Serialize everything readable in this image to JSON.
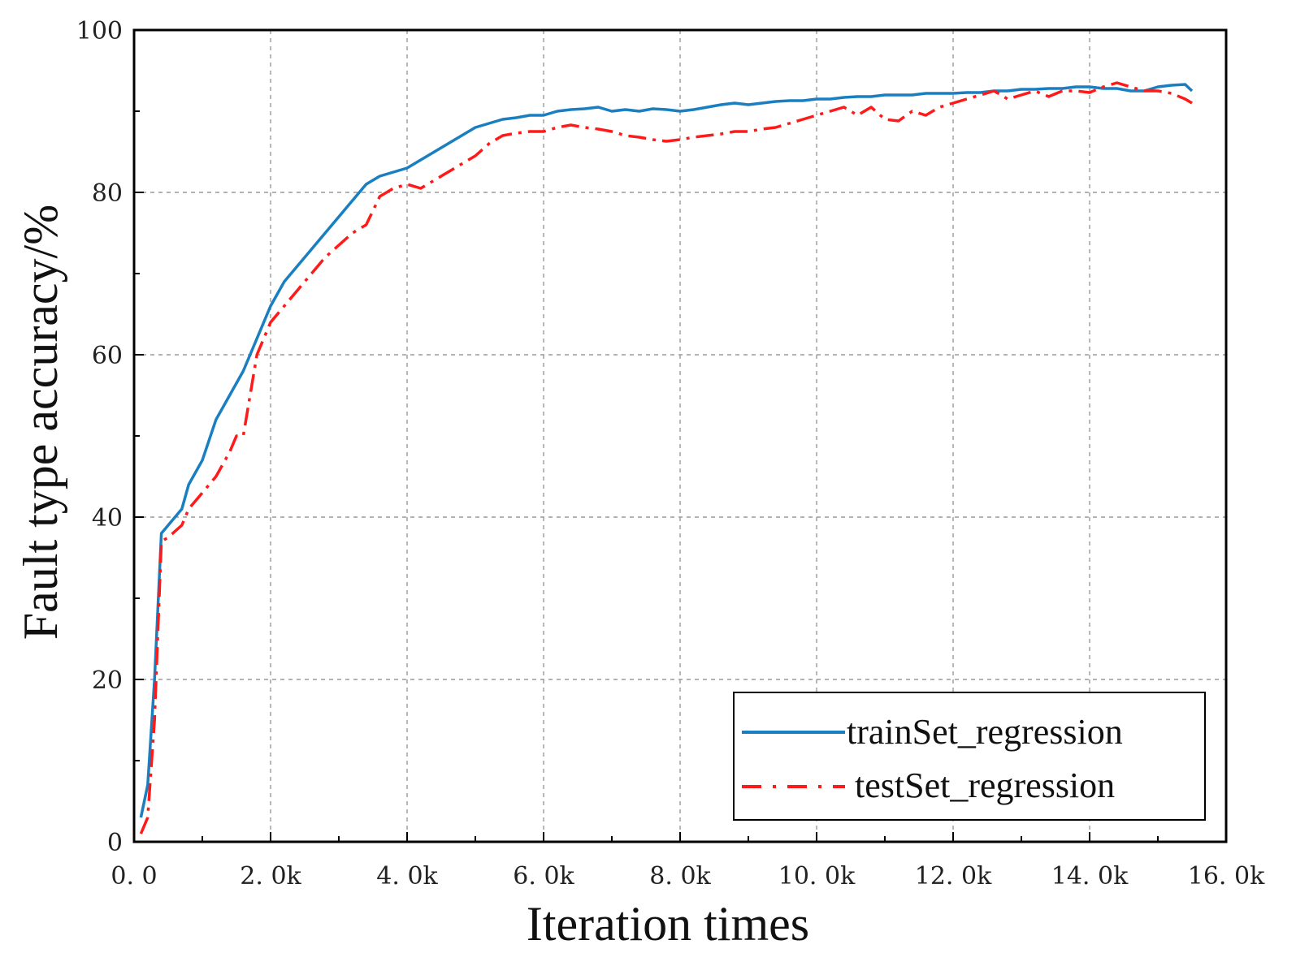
{
  "chart_data": {
    "type": "line",
    "title": "",
    "xlabel": "Iteration times",
    "ylabel": "Fault type accuracy/%",
    "xlim": [
      0,
      16000
    ],
    "ylim": [
      0,
      100
    ],
    "grid": true,
    "legend_position": "bottom-right",
    "x_ticks": [
      {
        "value": 0,
        "label": "0. 0"
      },
      {
        "value": 2000,
        "label": "2. 0k"
      },
      {
        "value": 4000,
        "label": "4. 0k"
      },
      {
        "value": 6000,
        "label": "6. 0k"
      },
      {
        "value": 8000,
        "label": "8. 0k"
      },
      {
        "value": 10000,
        "label": "10. 0k"
      },
      {
        "value": 12000,
        "label": "12. 0k"
      },
      {
        "value": 14000,
        "label": "14. 0k"
      },
      {
        "value": 16000,
        "label": "16. 0k"
      }
    ],
    "y_ticks": [
      {
        "value": 0,
        "label": "0"
      },
      {
        "value": 20,
        "label": "20"
      },
      {
        "value": 40,
        "label": "40"
      },
      {
        "value": 60,
        "label": "60"
      },
      {
        "value": 80,
        "label": "80"
      },
      {
        "value": 100,
        "label": "100"
      }
    ],
    "series": [
      {
        "name": "trainSet_regression",
        "color": "#1a7fc0",
        "style": "solid",
        "x": [
          100,
          200,
          300,
          400,
          500,
          700,
          800,
          1000,
          1200,
          1400,
          1600,
          1800,
          2000,
          2200,
          2400,
          2600,
          2800,
          3000,
          3200,
          3400,
          3600,
          3800,
          4000,
          4200,
          4400,
          4600,
          4800,
          5000,
          5200,
          5400,
          5600,
          5800,
          6000,
          6200,
          6400,
          6600,
          6800,
          7000,
          7200,
          7400,
          7600,
          7800,
          8000,
          8200,
          8400,
          8600,
          8800,
          9000,
          9200,
          9400,
          9600,
          9800,
          10000,
          10200,
          10400,
          10600,
          10800,
          11000,
          11200,
          11400,
          11600,
          11800,
          12000,
          12200,
          12400,
          12600,
          12800,
          13000,
          13200,
          13400,
          13600,
          13800,
          14000,
          14200,
          14400,
          14600,
          14800,
          15000,
          15200,
          15400,
          15500
        ],
        "values": [
          3,
          7,
          20,
          38,
          39,
          41,
          44,
          47,
          52,
          55,
          58,
          62,
          66,
          69,
          71,
          73,
          75,
          77,
          79,
          81,
          82,
          82.5,
          83,
          84,
          85,
          86,
          87,
          88,
          88.5,
          89,
          89.2,
          89.5,
          89.5,
          90,
          90.2,
          90.3,
          90.5,
          90,
          90.2,
          90,
          90.3,
          90.2,
          90,
          90.2,
          90.5,
          90.8,
          91,
          90.8,
          91,
          91.2,
          91.3,
          91.3,
          91.5,
          91.5,
          91.7,
          91.8,
          91.8,
          92,
          92,
          92,
          92.2,
          92.2,
          92.2,
          92.3,
          92.3,
          92.5,
          92.5,
          92.7,
          92.7,
          92.8,
          92.8,
          93,
          93,
          92.8,
          92.8,
          92.5,
          92.5,
          93,
          93.2,
          93.3,
          92.5
        ]
      },
      {
        "name": "testSet_regression",
        "color": "#ff1a1a",
        "style": "dash-dot",
        "x": [
          100,
          150,
          200,
          300,
          400,
          500,
          700,
          800,
          1000,
          1200,
          1400,
          1500,
          1600,
          1700,
          1800,
          2000,
          2200,
          2400,
          2600,
          2800,
          3000,
          3200,
          3400,
          3600,
          3800,
          4000,
          4200,
          4400,
          4600,
          4800,
          5000,
          5200,
          5400,
          5600,
          5800,
          6000,
          6200,
          6400,
          6600,
          6800,
          7000,
          7200,
          7400,
          7600,
          7800,
          8000,
          8200,
          8400,
          8600,
          8800,
          9000,
          9200,
          9400,
          9600,
          9800,
          10000,
          10200,
          10400,
          10600,
          10800,
          11000,
          11200,
          11400,
          11600,
          11800,
          12000,
          12200,
          12400,
          12600,
          12800,
          13000,
          13200,
          13400,
          13600,
          13800,
          14000,
          14200,
          14400,
          14600,
          14800,
          15000,
          15200,
          15400,
          15500
        ],
        "values": [
          1,
          2,
          3,
          15,
          37,
          37.5,
          39,
          41,
          43,
          45,
          48,
          50,
          50,
          55,
          60,
          64,
          66,
          68,
          70,
          72,
          73.5,
          75,
          76,
          79.5,
          80.5,
          81,
          80.5,
          81.5,
          82.5,
          83.5,
          84.5,
          86,
          87,
          87.3,
          87.5,
          87.5,
          88,
          88.3,
          88,
          87.8,
          87.5,
          87,
          86.8,
          86.5,
          86.3,
          86.5,
          86.8,
          87,
          87.2,
          87.5,
          87.5,
          87.8,
          88,
          88.5,
          89,
          89.5,
          90,
          90.5,
          89.5,
          90.5,
          89,
          88.8,
          90,
          89.5,
          90.5,
          91,
          91.5,
          92,
          92.5,
          91.5,
          92,
          92.5,
          91.8,
          92.5,
          92.5,
          92.3,
          93,
          93.5,
          93,
          92.5,
          92.5,
          92.2,
          91.5,
          91
        ]
      }
    ]
  }
}
